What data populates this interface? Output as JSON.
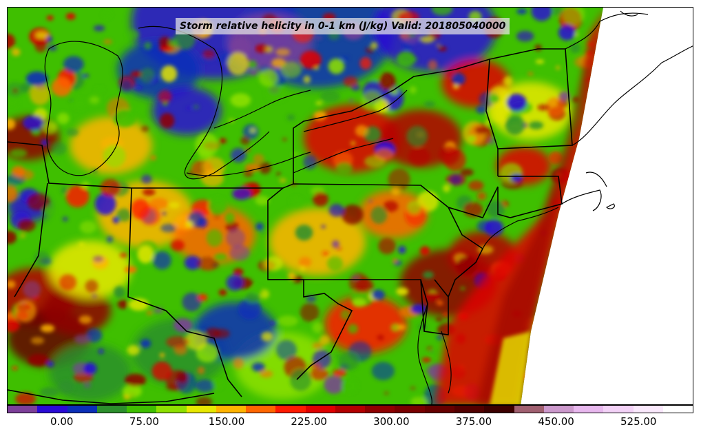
{
  "title": "Storm relative helicity in 0-1 km (J/kg) Valid: 201805040000",
  "colorbar": {
    "colors": [
      "#7d3f99",
      "#2a0ad6",
      "#0a2fb8",
      "#2c8f2c",
      "#3fbf00",
      "#8ee000",
      "#e8e800",
      "#ffb400",
      "#ff6600",
      "#ff1a00",
      "#e00000",
      "#b40000",
      "#900000",
      "#7a0000",
      "#660000",
      "#520000",
      "#3c0000",
      "#a06070",
      "#cc99cc",
      "#e8b8ee",
      "#f3d2f7",
      "#fae9fc",
      "#ffffff"
    ],
    "min": -50,
    "max": 575,
    "ticks": [
      "0.00",
      "75.00",
      "150.00",
      "225.00",
      "300.00",
      "375.00",
      "450.00",
      "525.00"
    ]
  },
  "map": {
    "field_colors": [
      "#3fbf00",
      "#2c8f2c",
      "#8ee000",
      "#e8e800",
      "#ffb400",
      "#ff6600",
      "#ff1a00",
      "#e00000",
      "#b40000",
      "#900000",
      "#2a0ad6",
      "#0a2fb8",
      "#7d3f99"
    ]
  }
}
